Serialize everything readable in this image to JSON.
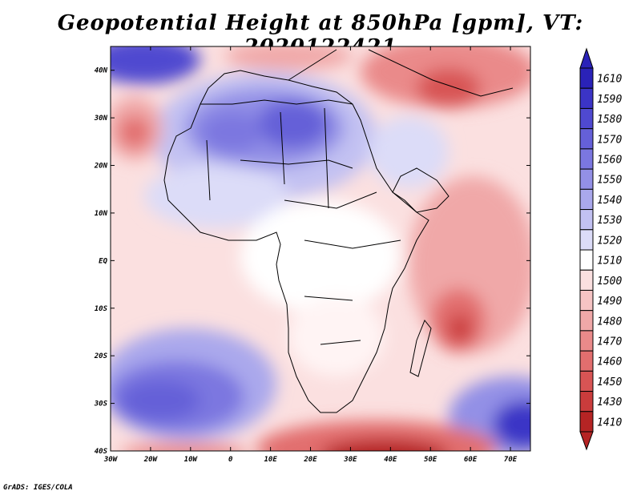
{
  "title": "Geopotential Height at 850hPa [gpm], VT: 2020122421",
  "credit": "GrADS: IGES/COLA",
  "map": {
    "lon_range": [
      -30,
      75
    ],
    "lat_range": [
      -40,
      45
    ],
    "lon_ticks": [
      {
        "value": -30,
        "label": "30W"
      },
      {
        "value": -20,
        "label": "20W"
      },
      {
        "value": -10,
        "label": "10W"
      },
      {
        "value": 0,
        "label": "0"
      },
      {
        "value": 10,
        "label": "10E"
      },
      {
        "value": 20,
        "label": "20E"
      },
      {
        "value": 30,
        "label": "30E"
      },
      {
        "value": 40,
        "label": "40E"
      },
      {
        "value": 50,
        "label": "50E"
      },
      {
        "value": 60,
        "label": "60E"
      },
      {
        "value": 70,
        "label": "70E"
      }
    ],
    "lat_ticks": [
      {
        "value": 40,
        "label": "40N"
      },
      {
        "value": 30,
        "label": "30N"
      },
      {
        "value": 20,
        "label": "20N"
      },
      {
        "value": 10,
        "label": "10N"
      },
      {
        "value": 0,
        "label": "EQ"
      },
      {
        "value": -10,
        "label": "10S"
      },
      {
        "value": -20,
        "label": "20S"
      },
      {
        "value": -30,
        "label": "30S"
      },
      {
        "value": -40,
        "label": "40S"
      }
    ]
  },
  "colorbar": {
    "levels": [
      {
        "label": "1610",
        "color": "#2a22b8"
      },
      {
        "label": "1590",
        "color": "#3b34c6"
      },
      {
        "label": "1580",
        "color": "#4f49d0"
      },
      {
        "label": "1570",
        "color": "#6560d8"
      },
      {
        "label": "1560",
        "color": "#7b77e0"
      },
      {
        "label": "1550",
        "color": "#9390e6"
      },
      {
        "label": "1540",
        "color": "#aaa8ec"
      },
      {
        "label": "1530",
        "color": "#c2c1f2"
      },
      {
        "label": "1520",
        "color": "#dcdcf8"
      },
      {
        "label": "1510",
        "color": "#ffffff"
      },
      {
        "label": "1500",
        "color": "#fbe0e0"
      },
      {
        "label": "1490",
        "color": "#f6c4c4"
      },
      {
        "label": "1480",
        "color": "#f0a8a8"
      },
      {
        "label": "1470",
        "color": "#ea8a8a"
      },
      {
        "label": "1460",
        "color": "#e26e6e"
      },
      {
        "label": "1450",
        "color": "#d85454"
      },
      {
        "label": "1430",
        "color": "#ca3c3c"
      },
      {
        "label": "1410",
        "color": "#b52424"
      }
    ]
  }
}
